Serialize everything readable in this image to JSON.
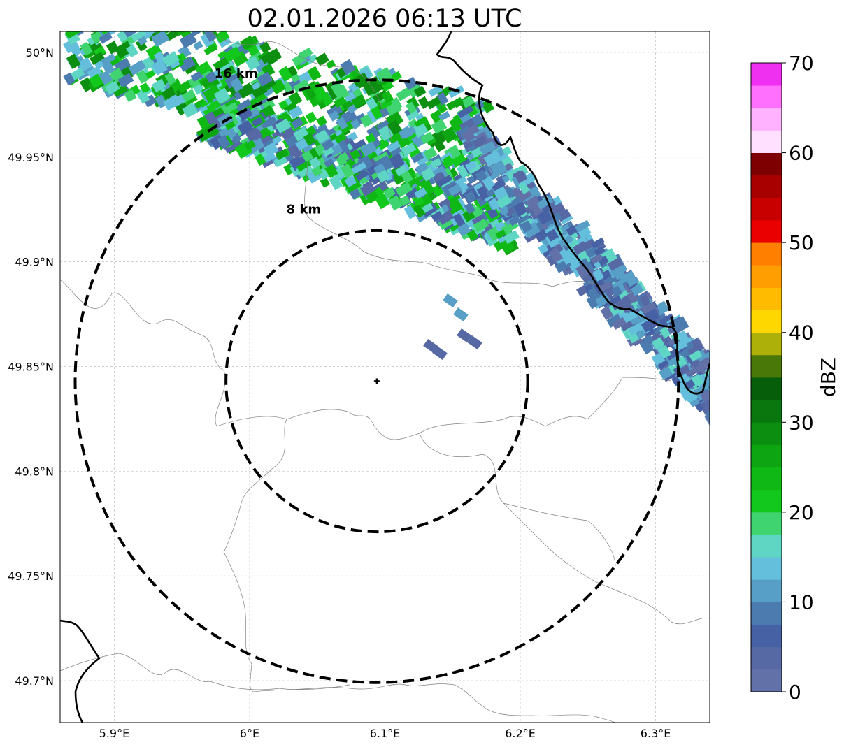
{
  "title": "02.01.2026 06:13 UTC",
  "x_ticks": [
    {
      "value": 5.9,
      "label": "5.9°E"
    },
    {
      "value": 6.0,
      "label": "6°E"
    },
    {
      "value": 6.1,
      "label": "6.1°E"
    },
    {
      "value": 6.2,
      "label": "6.2°E"
    },
    {
      "value": 6.3,
      "label": "6.3°E"
    }
  ],
  "y_ticks": [
    {
      "value": 50.0,
      "label": "50°N"
    },
    {
      "value": 49.95,
      "label": "49.95°N"
    },
    {
      "value": 49.9,
      "label": "49.9°N"
    },
    {
      "value": 49.85,
      "label": "49.85°N"
    },
    {
      "value": 49.8,
      "label": "49.8°N"
    },
    {
      "value": 49.75,
      "label": "49.75°N"
    },
    {
      "value": 49.7,
      "label": "49.7°N"
    }
  ],
  "extent": {
    "lon": [
      5.86,
      6.34
    ],
    "lat": [
      49.68,
      50.01
    ]
  },
  "radar_site": {
    "lon": 6.094,
    "lat": 49.843
  },
  "range_rings": [
    {
      "label": "8 km",
      "radius_km": 8,
      "label_lon": 6.04,
      "label_lat": 49.923
    },
    {
      "label": "16 km",
      "radius_km": 16,
      "label_lon": 5.99,
      "label_lat": 49.988
    }
  ],
  "colorbar": {
    "label": "dBZ",
    "min": 0,
    "max": 70,
    "step": 2.5,
    "tick_labels": [
      "0",
      "10",
      "20",
      "30",
      "40",
      "50",
      "60",
      "70"
    ],
    "colors": [
      "#6272a8",
      "#5669a4",
      "#4661a4",
      "#4c7bb0",
      "#589fc7",
      "#63bfdc",
      "#5fd6c4",
      "#3fd46f",
      "#13c81c",
      "#10b815",
      "#0ea512",
      "#0c8f10",
      "#0a760e",
      "#065d0a",
      "#4a7808",
      "#aeb00a",
      "#ffd700",
      "#ffbb00",
      "#ff9e00",
      "#ff7f00",
      "#ea0000",
      "#c80000",
      "#a80000",
      "#7e0000",
      "#ffe0ff",
      "#ffb2ff",
      "#ff70ff",
      "#f030f0"
    ]
  },
  "colors": {
    "grid": "#b4b4b4",
    "border": "#000000",
    "boundary": "#808080"
  }
}
